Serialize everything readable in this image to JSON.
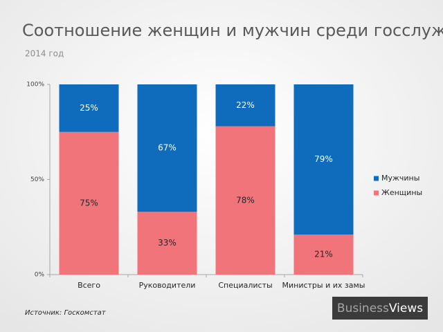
{
  "chart_data": {
    "type": "stacked_bar",
    "title": "Соотношение женщин и мужчин среди госслужащих",
    "subtitle": "2014 год",
    "categories": [
      "Всего",
      "Руководители",
      "Специалисты",
      "Министры и их замы"
    ],
    "series": [
      {
        "name": "Женщины",
        "color": "#f2747b",
        "values": [
          75,
          33,
          78,
          21
        ],
        "value_labels": [
          "75%",
          "33%",
          "78%",
          "21%"
        ],
        "label_color": "#262626"
      },
      {
        "name": "Мужчины",
        "color": "#0f6cbd",
        "values": [
          25,
          67,
          22,
          79
        ],
        "value_labels": [
          "25%",
          "67%",
          "22%",
          "79%"
        ],
        "label_color": "#ffffff"
      }
    ],
    "ylim": [
      0,
      100
    ],
    "yticks": [
      {
        "value": 0,
        "label": "0%"
      },
      {
        "value": 50,
        "label": "50%"
      },
      {
        "value": 100,
        "label": "100%"
      }
    ],
    "legend": "right",
    "source": "Источник: Госкомстат",
    "brand": [
      "Business",
      "Views"
    ]
  }
}
